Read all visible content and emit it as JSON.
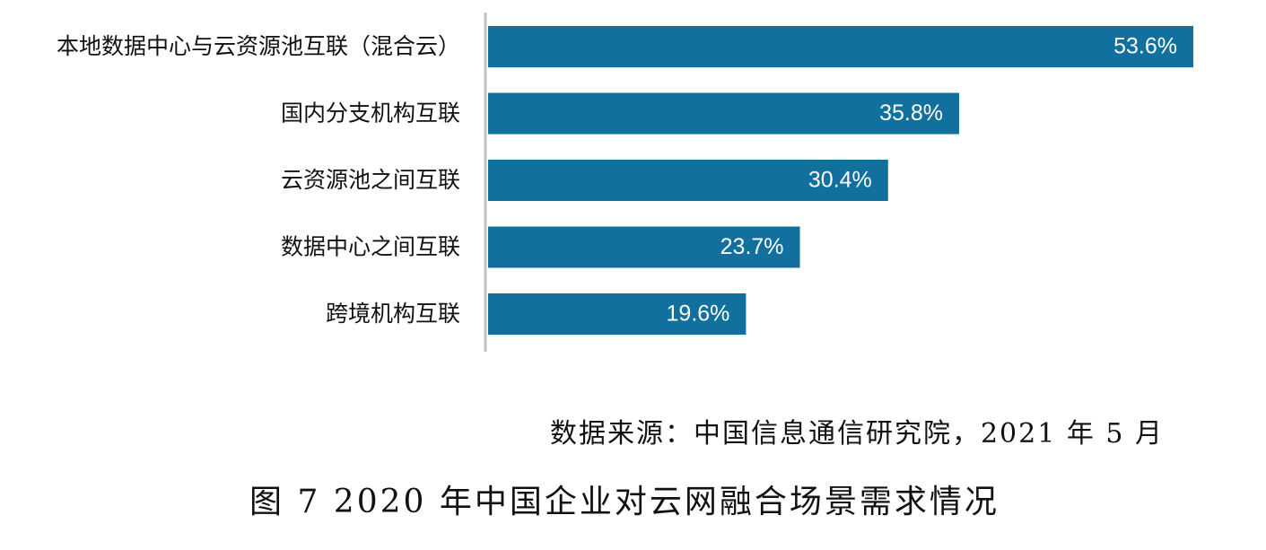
{
  "chart_data": {
    "type": "bar",
    "orientation": "horizontal",
    "categories": [
      "本地数据中心与云资源池互联（混合云）",
      "国内分支机构互联",
      "云资源池之间互联",
      "数据中心之间互联",
      "跨境机构互联"
    ],
    "values": [
      53.6,
      35.8,
      30.4,
      23.7,
      19.6
    ],
    "value_labels": [
      "53.6%",
      "35.8%",
      "30.4%",
      "23.7%",
      "19.6%"
    ],
    "unit": "%",
    "xlim": [
      0,
      60
    ],
    "grid": false,
    "legend": "none",
    "bar_color": "#12709e",
    "axis_color": "#c0c0c0",
    "label_color": "#ffffff"
  },
  "source_note": "数据来源：中国信息通信研究院，2021 年 5 月",
  "figure_caption": "图 7 2020 年中国企业对云网融合场景需求情况"
}
